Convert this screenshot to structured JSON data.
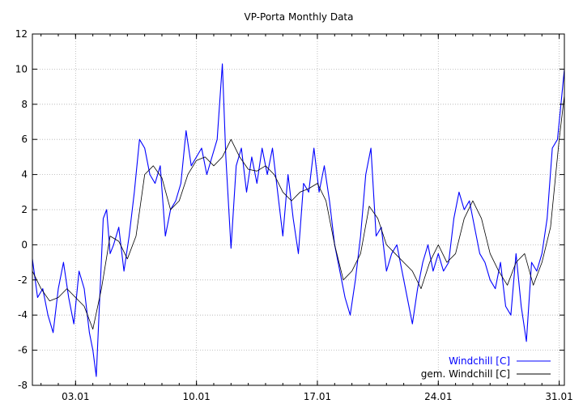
{
  "chart_data": {
    "type": "line",
    "title": "VP-Porta Monthly Data",
    "xlabel": "",
    "ylabel": "",
    "xlim": [
      0.5,
      31.3
    ],
    "ylim": [
      -8,
      12
    ],
    "grid": true,
    "legend_position": "bottom-right",
    "x_ticks": [
      {
        "value": 3,
        "label": "03.01"
      },
      {
        "value": 10,
        "label": "10.01"
      },
      {
        "value": 17,
        "label": "17.01"
      },
      {
        "value": 24,
        "label": "24.01"
      },
      {
        "value": 31,
        "label": "31.01"
      }
    ],
    "y_ticks": [
      -8,
      -6,
      -4,
      -2,
      0,
      2,
      4,
      6,
      8,
      10,
      12
    ],
    "series": [
      {
        "name": "Windchill [C]",
        "color": "#0000ff",
        "x": [
          0.5,
          0.8,
          1.1,
          1.4,
          1.7,
          2.0,
          2.3,
          2.6,
          2.9,
          3.2,
          3.5,
          3.8,
          4.0,
          4.2,
          4.4,
          4.6,
          4.8,
          5.0,
          5.2,
          5.5,
          5.8,
          6.1,
          6.4,
          6.7,
          7.0,
          7.3,
          7.6,
          7.9,
          8.2,
          8.5,
          8.8,
          9.1,
          9.4,
          9.7,
          10.0,
          10.3,
          10.6,
          10.9,
          11.2,
          11.5,
          11.7,
          12.0,
          12.3,
          12.6,
          12.9,
          13.2,
          13.5,
          13.8,
          14.1,
          14.4,
          14.7,
          15.0,
          15.3,
          15.6,
          15.9,
          16.2,
          16.5,
          16.8,
          17.1,
          17.4,
          17.7,
          18.0,
          18.3,
          18.6,
          18.9,
          19.2,
          19.5,
          19.8,
          20.1,
          20.4,
          20.7,
          21.0,
          21.3,
          21.6,
          21.9,
          22.2,
          22.5,
          22.8,
          23.1,
          23.4,
          23.7,
          24.0,
          24.3,
          24.6,
          24.9,
          25.2,
          25.5,
          25.8,
          26.1,
          26.4,
          26.7,
          27.0,
          27.3,
          27.6,
          27.9,
          28.2,
          28.5,
          28.8,
          29.1,
          29.4,
          29.7,
          30.0,
          30.3,
          30.6,
          30.9,
          31.2,
          31.3
        ],
        "values": [
          -0.8,
          -3.0,
          -2.5,
          -4.0,
          -5.0,
          -2.5,
          -1.0,
          -3.0,
          -4.5,
          -1.5,
          -2.5,
          -5.0,
          -6.0,
          -7.5,
          -3.0,
          1.5,
          2.0,
          -0.5,
          0.0,
          1.0,
          -1.5,
          0.5,
          3.0,
          6.0,
          5.5,
          4.0,
          3.5,
          4.5,
          0.5,
          2.0,
          2.5,
          3.5,
          6.5,
          4.5,
          5.0,
          5.5,
          4.0,
          5.0,
          6.0,
          10.3,
          5.0,
          -0.2,
          4.5,
          5.5,
          3.0,
          5.0,
          3.5,
          5.5,
          4.0,
          5.5,
          3.0,
          0.5,
          4.0,
          1.5,
          -0.5,
          3.5,
          3.0,
          5.5,
          3.0,
          4.5,
          2.5,
          0.0,
          -1.5,
          -3.0,
          -4.0,
          -2.0,
          0.5,
          4.0,
          5.5,
          0.5,
          1.0,
          -1.5,
          -0.5,
          0.0,
          -1.5,
          -3.0,
          -4.5,
          -2.5,
          -1.0,
          0.0,
          -1.5,
          -0.5,
          -1.5,
          -1.0,
          1.5,
          3.0,
          2.0,
          2.5,
          1.0,
          -0.5,
          -1.0,
          -2.0,
          -2.5,
          -1.0,
          -3.5,
          -4.0,
          -0.5,
          -3.5,
          -5.5,
          -1.0,
          -1.5,
          -0.5,
          1.5,
          5.5,
          6.0,
          9.0,
          10.0
        ]
      },
      {
        "name": "gem. Windchill [C]",
        "color": "#000000",
        "x": [
          0.5,
          1.0,
          1.5,
          2.0,
          2.5,
          3.0,
          3.5,
          4.0,
          4.5,
          5.0,
          5.5,
          6.0,
          6.5,
          7.0,
          7.5,
          8.0,
          8.5,
          9.0,
          9.5,
          10.0,
          10.5,
          11.0,
          11.5,
          12.0,
          12.5,
          13.0,
          13.5,
          14.0,
          14.5,
          15.0,
          15.5,
          16.0,
          16.5,
          17.0,
          17.5,
          18.0,
          18.5,
          19.0,
          19.5,
          20.0,
          20.5,
          21.0,
          21.5,
          22.0,
          22.5,
          23.0,
          23.5,
          24.0,
          24.5,
          25.0,
          25.5,
          26.0,
          26.5,
          27.0,
          27.5,
          28.0,
          28.5,
          29.0,
          29.5,
          30.0,
          30.5,
          31.0,
          31.3
        ],
        "values": [
          -1.5,
          -2.5,
          -3.2,
          -3.0,
          -2.5,
          -3.0,
          -3.5,
          -4.8,
          -2.5,
          0.5,
          0.2,
          -0.8,
          0.5,
          4.0,
          4.5,
          3.8,
          2.0,
          2.5,
          4.0,
          4.8,
          5.0,
          4.5,
          5.0,
          6.0,
          5.0,
          4.3,
          4.2,
          4.5,
          4.0,
          3.0,
          2.5,
          3.0,
          3.2,
          3.5,
          2.5,
          0.0,
          -2.0,
          -1.5,
          -0.5,
          2.2,
          1.5,
          0.0,
          -0.5,
          -1.0,
          -1.5,
          -2.5,
          -1.0,
          0.0,
          -1.0,
          -0.5,
          1.5,
          2.5,
          1.5,
          -0.5,
          -1.5,
          -2.3,
          -1.0,
          -0.5,
          -2.3,
          -1.0,
          1.0,
          6.0,
          8.5
        ]
      }
    ]
  }
}
